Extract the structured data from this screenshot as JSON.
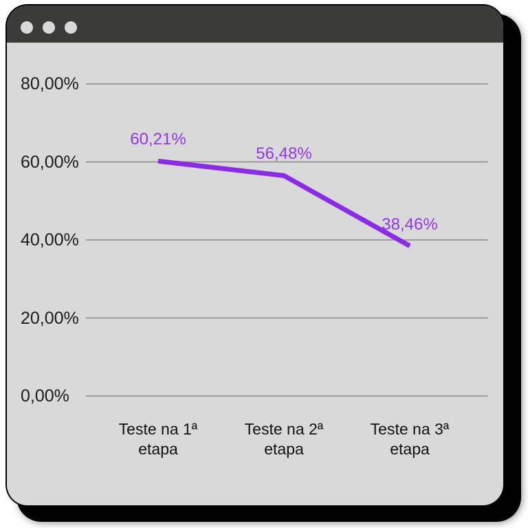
{
  "window": {
    "titlebar_buttons": [
      {
        "name": "close"
      },
      {
        "name": "minimize"
      },
      {
        "name": "zoom"
      }
    ]
  },
  "colors": {
    "titlebar": "#3b3b39",
    "window_background": "#d9d9d9",
    "gridline": "#8a8a8a",
    "axis_text": "#1b1b1b",
    "accent_purple": "#8a2be5"
  },
  "chart_data": {
    "type": "line",
    "title": "",
    "categories": [
      "Teste na 1ª etapa",
      "Teste na 2ª etapa",
      "Teste na 3ª etapa"
    ],
    "values": [
      60.21,
      56.48,
      38.46
    ],
    "point_labels": [
      "60,21%",
      "56,48%",
      "38,46%"
    ],
    "y_ticks": [
      {
        "value": 80,
        "label": "80,00%"
      },
      {
        "value": 60,
        "label": "60,00%"
      },
      {
        "value": 40,
        "label": "40,00%"
      },
      {
        "value": 20,
        "label": "20,00%"
      },
      {
        "value": 0,
        "label": "0,00%"
      }
    ],
    "ylim": [
      0,
      80
    ],
    "xlabel": "",
    "ylabel": "",
    "grid": "horizontal",
    "legend": "none",
    "line_color": "#8a2be5",
    "point_label_color": "#9138ea"
  }
}
